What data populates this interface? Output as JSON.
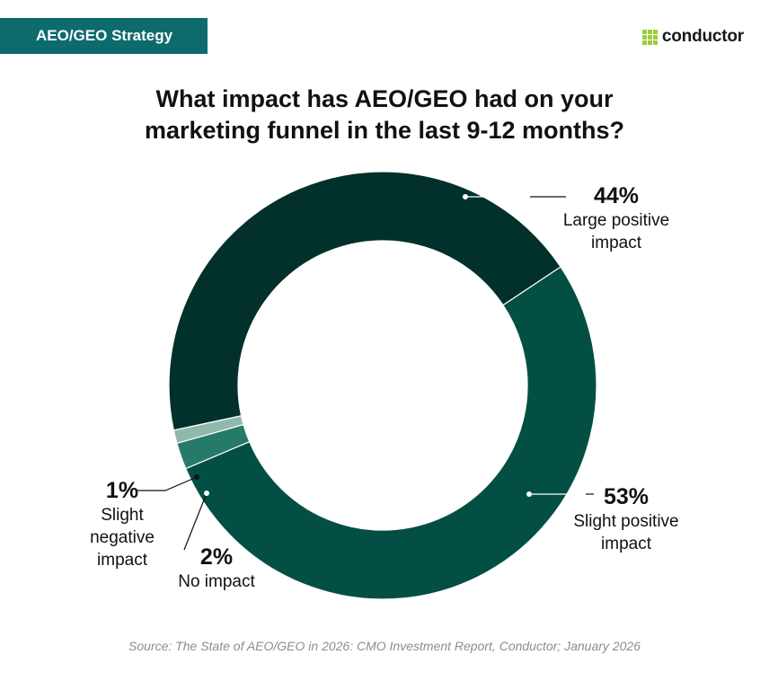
{
  "header": {
    "tag_label": "AEO/GEO Strategy",
    "brand_name": "conductor",
    "logo_icon": "dot-grid-logo-icon"
  },
  "chart_data": {
    "type": "pie",
    "title": "What impact has AEO/GEO had on your\nmarketing funnel in the last 9-12 months?",
    "donut": true,
    "slices": [
      {
        "label": "Large positive\nimpact",
        "value": 44,
        "value_label": "44%",
        "color": "#02302b"
      },
      {
        "label": "Slight positive\nimpact",
        "value": 53,
        "value_label": "53%",
        "color": "#034f44"
      },
      {
        "label": "No impact",
        "value": 2,
        "value_label": "2%",
        "color": "#267a69"
      },
      {
        "label": "Slight\nnegative\nimpact",
        "value": 1,
        "value_label": "1%",
        "color": "#8fb9ad"
      }
    ]
  },
  "source_text": "Source: The State of AEO/GEO in 2026: CMO Investment Report, Conductor; January 2026"
}
